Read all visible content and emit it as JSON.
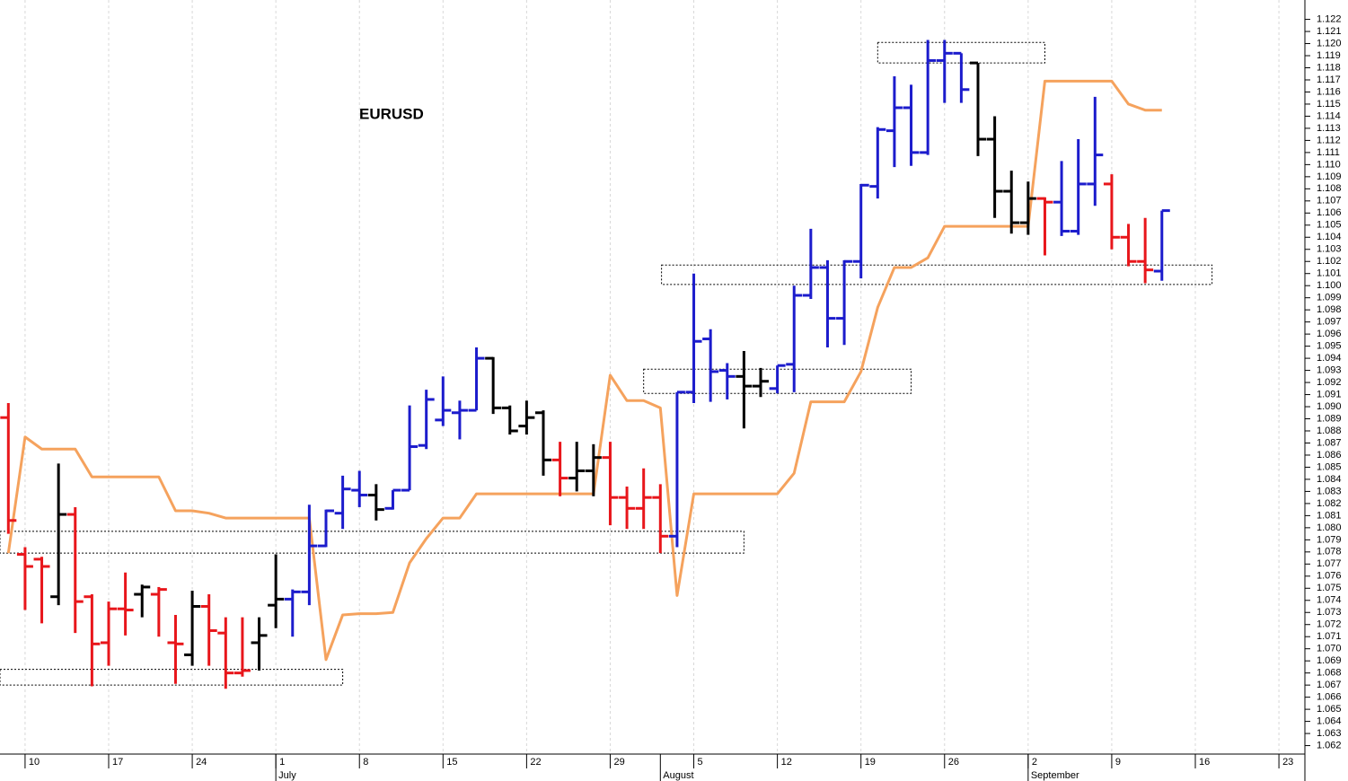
{
  "chart_data": {
    "type": "ohlc",
    "title": "EURUSD",
    "categories": [
      null,
      "10",
      null,
      null,
      null,
      null,
      "17",
      null,
      null,
      null,
      null,
      "24",
      null,
      null,
      null,
      null,
      "1",
      null,
      null,
      null,
      null,
      "8",
      null,
      null,
      null,
      null,
      "15",
      null,
      null,
      null,
      null,
      "22",
      null,
      null,
      null,
      null,
      "29",
      null,
      null,
      null,
      null,
      "5",
      null,
      null,
      null,
      null,
      "12",
      null,
      null,
      null,
      null,
      "19",
      null,
      null,
      null,
      null,
      "26",
      null,
      null,
      null,
      null,
      "2",
      null,
      null,
      null,
      null,
      "9",
      null,
      null,
      null,
      null,
      "16",
      null,
      null,
      null,
      null,
      "23",
      null
    ],
    "month_labels": [
      null,
      null,
      null,
      null,
      null,
      null,
      null,
      null,
      null,
      null,
      null,
      null,
      null,
      null,
      null,
      null,
      "July",
      null,
      null,
      null,
      null,
      null,
      null,
      null,
      null,
      null,
      null,
      null,
      null,
      null,
      null,
      null,
      null,
      null,
      null,
      null,
      null,
      null,
      null,
      "August",
      null,
      null,
      null,
      null,
      null,
      null,
      null,
      null,
      null,
      null,
      null,
      null,
      null,
      null,
      null,
      null,
      null,
      null,
      null,
      null,
      null,
      "September",
      null,
      null,
      null,
      null,
      null,
      null,
      null,
      null,
      null,
      null,
      null,
      null,
      null,
      null,
      null,
      null
    ],
    "open": [
      1.0891,
      1.0778,
      1.0774,
      1.0743,
      1.0811,
      1.0743,
      1.0705,
      1.0733,
      1.0745,
      1.0745,
      1.0705,
      1.0695,
      1.0735,
      1.0713,
      1.068,
      1.0705,
      1.0736,
      1.0741,
      1.0747,
      1.0785,
      1.0812,
      1.0831,
      1.0827,
      1.0816,
      1.0831,
      1.0868,
      1.0889,
      1.0895,
      1.0897,
      1.094,
      1.0899,
      1.0884,
      1.0895,
      1.0856,
      1.0841,
      1.0847,
      1.0858,
      1.0825,
      1.0816,
      1.0825,
      1.0793,
      1.0912,
      1.0956,
      1.093,
      1.0925,
      1.0917,
      1.0915,
      1.0935,
      1.0992,
      1.1015,
      1.0973,
      1.102,
      1.1082,
      1.1128,
      1.1147,
      1.111,
      1.1186,
      1.1192,
      1.1184,
      1.1121,
      1.1078,
      1.1052,
      1.1072,
      1.1069,
      1.1045,
      1.1084,
      1.1084,
      1.104,
      1.102,
      1.1012,
      null,
      null,
      null,
      null,
      null,
      null,
      null,
      null
    ],
    "high": [
      1.0903,
      1.0784,
      1.0776,
      1.0853,
      1.0817,
      1.0745,
      1.0739,
      1.0763,
      1.0753,
      1.0751,
      1.0728,
      1.0748,
      1.0745,
      1.0726,
      1.0726,
      1.0726,
      1.0778,
      1.0749,
      1.0819,
      1.0815,
      1.0843,
      1.0847,
      1.0836,
      1.0831,
      1.0901,
      1.0914,
      1.0925,
      1.0905,
      1.0949,
      1.0941,
      1.0901,
      1.0905,
      1.0897,
      1.0871,
      1.0871,
      1.0869,
      1.0871,
      1.0834,
      1.0849,
      1.0836,
      1.0912,
      1.101,
      1.0964,
      1.0936,
      1.0946,
      1.0932,
      1.0934,
      1.1,
      1.1047,
      1.1021,
      1.1021,
      1.1084,
      1.1131,
      1.1173,
      1.1166,
      1.1203,
      1.1203,
      1.1192,
      1.1184,
      1.114,
      1.1095,
      1.1086,
      1.1073,
      1.1103,
      1.1121,
      1.1156,
      1.1092,
      1.1051,
      1.1056,
      1.1062,
      null,
      null,
      null,
      null,
      null,
      null,
      null,
      null
    ],
    "low": [
      1.0795,
      1.0732,
      1.0721,
      1.0736,
      1.0713,
      1.0669,
      1.0686,
      1.0711,
      1.0726,
      1.071,
      1.0671,
      1.0686,
      1.0686,
      1.0667,
      1.0677,
      1.0682,
      1.0717,
      1.071,
      1.0736,
      1.0784,
      1.0799,
      1.0817,
      1.0806,
      1.0815,
      1.0831,
      1.0865,
      1.0884,
      1.0873,
      1.0897,
      1.0894,
      1.0877,
      1.0877,
      1.0843,
      1.0826,
      1.083,
      1.0826,
      1.0802,
      1.0799,
      1.0799,
      1.0779,
      1.0784,
      1.0903,
      1.0904,
      1.0906,
      1.0882,
      1.0908,
      1.0911,
      1.0912,
      1.0989,
      1.0949,
      1.0951,
      1.1006,
      1.1072,
      1.1098,
      1.1099,
      1.1108,
      1.1151,
      1.1151,
      1.1107,
      1.1056,
      1.1043,
      1.1042,
      1.1025,
      1.1041,
      1.1042,
      1.1066,
      1.103,
      1.1016,
      1.1002,
      1.1004,
      null,
      null,
      null,
      null,
      null,
      null,
      null,
      null
    ],
    "close": [
      1.0806,
      1.0768,
      1.0768,
      1.0811,
      1.0739,
      1.0704,
      1.0733,
      1.0732,
      1.0751,
      1.0749,
      1.0704,
      1.0735,
      1.0715,
      1.068,
      1.0682,
      1.0711,
      1.0741,
      1.0747,
      1.0785,
      1.0814,
      1.0832,
      1.0827,
      1.0815,
      1.0831,
      1.0867,
      1.0906,
      1.0897,
      1.0897,
      1.094,
      1.0899,
      1.088,
      1.0891,
      1.0856,
      1.0841,
      1.0847,
      1.0858,
      1.0825,
      1.0816,
      1.0825,
      1.0793,
      1.0912,
      1.0954,
      1.0929,
      1.0925,
      1.0917,
      1.0921,
      1.0934,
      1.0992,
      1.1015,
      1.0973,
      1.102,
      1.1083,
      1.1129,
      1.1147,
      1.111,
      1.1186,
      1.1192,
      1.1162,
      1.1121,
      1.1078,
      1.1052,
      1.1072,
      1.1069,
      1.1045,
      1.1084,
      1.1108,
      1.104,
      1.102,
      1.1013,
      1.1062,
      null,
      null,
      null,
      null,
      null,
      null,
      null,
      null
    ],
    "bar_colors": [
      "#e8161b",
      "#e8161b",
      "#e8161b",
      "#000000",
      "#e8161b",
      "#e8161b",
      "#e8161b",
      "#e8161b",
      "#000000",
      "#e8161b",
      "#e8161b",
      "#000000",
      "#e8161b",
      "#e8161b",
      "#e8161b",
      "#000000",
      "#000000",
      "#1c1ccc",
      "#1c1ccc",
      "#1c1ccc",
      "#1c1ccc",
      "#1c1ccc",
      "#000000",
      "#1c1ccc",
      "#1c1ccc",
      "#1c1ccc",
      "#1c1ccc",
      "#1c1ccc",
      "#1c1ccc",
      "#000000",
      "#000000",
      "#000000",
      "#000000",
      "#e8161b",
      "#000000",
      "#000000",
      "#e8161b",
      "#e8161b",
      "#e8161b",
      "#e8161b",
      "#1c1ccc",
      "#1c1ccc",
      "#1c1ccc",
      "#1c1ccc",
      "#000000",
      "#000000",
      "#1c1ccc",
      "#1c1ccc",
      "#1c1ccc",
      "#1c1ccc",
      "#1c1ccc",
      "#1c1ccc",
      "#1c1ccc",
      "#1c1ccc",
      "#1c1ccc",
      "#1c1ccc",
      "#1c1ccc",
      "#1c1ccc",
      "#000000",
      "#000000",
      "#000000",
      "#000000",
      "#e8161b",
      "#1c1ccc",
      "#1c1ccc",
      "#1c1ccc",
      "#e8161b",
      "#e8161b",
      "#e8161b",
      "#1c1ccc",
      null,
      null,
      null,
      null,
      null,
      null,
      null,
      null
    ],
    "lines": [
      {
        "color": "#f5a25d",
        "values": [
          1.0779,
          1.0875,
          1.0865,
          1.0865,
          1.0865,
          1.0842,
          1.0842,
          1.0842,
          1.0842,
          1.0842,
          1.0814,
          1.0814,
          1.0812,
          1.0808,
          1.0808,
          1.0808,
          1.0808,
          1.0808,
          1.0808,
          1.0691,
          1.0728,
          1.0729,
          1.0729,
          1.073,
          1.0771,
          1.0791,
          1.0808,
          1.0808,
          1.0828,
          1.0828,
          1.0828,
          1.0828,
          1.0828,
          1.0828,
          1.0828,
          1.0828,
          1.0926,
          1.0905,
          1.0905,
          1.0899,
          1.0744,
          1.0828,
          1.0828,
          1.0828,
          1.0828,
          1.0828,
          1.0828,
          1.0845,
          1.0904,
          1.0904,
          1.0904,
          1.0929,
          1.0982,
          1.1015,
          1.1015,
          1.1023,
          1.1049,
          1.1049,
          1.1049,
          1.1049,
          1.1049,
          1.1049,
          1.1169,
          1.1169,
          1.1169,
          1.1169,
          1.1169,
          1.115,
          1.1145,
          1.1145,
          null,
          null,
          null,
          null,
          null,
          null,
          null,
          null
        ]
      }
    ],
    "zones": [
      {
        "start": 52,
        "end": 62,
        "low": 1.1184,
        "high": 1.1201
      },
      {
        "start": 39.07,
        "end": 72,
        "low": 1.1001,
        "high": 1.1017
      },
      {
        "start": 38,
        "end": 54,
        "low": 1.0911,
        "high": 1.0931
      },
      {
        "start": -0.5,
        "end": 44,
        "low": 1.0779,
        "high": 1.0797
      },
      {
        "start": -0.5,
        "end": 20,
        "low": 1.067,
        "high": 1.0683
      }
    ],
    "ylim": [
      1.0613,
      1.1236
    ],
    "yticks": [
      1.062,
      1.063,
      1.064,
      1.065,
      1.066,
      1.067,
      1.068,
      1.069,
      {
        "value": 1.07,
        "label": "1.070"
      },
      1.071,
      1.072,
      1.073,
      1.074,
      1.075,
      1.076,
      1.077,
      1.078,
      1.079,
      {
        "value": 1.08,
        "label": "1.080"
      },
      1.081,
      1.082,
      1.083,
      1.084,
      1.085,
      1.086,
      1.087,
      1.088,
      1.089,
      {
        "value": 1.09,
        "label": "1.090"
      },
      1.091,
      1.092,
      1.093,
      1.094,
      1.095,
      1.096,
      1.097,
      1.098,
      1.099,
      {
        "value": 1.1,
        "label": "1.100"
      },
      1.101,
      1.102,
      1.103,
      1.104,
      1.105,
      1.106,
      1.107,
      1.108,
      1.109,
      {
        "value": 1.11,
        "label": "1.110"
      },
      1.111,
      1.112,
      1.113,
      1.114,
      1.115,
      1.116,
      1.117,
      1.118,
      1.119,
      {
        "value": 1.12,
        "label": "1.120"
      },
      1.121,
      1.122
    ],
    "grid": true
  }
}
